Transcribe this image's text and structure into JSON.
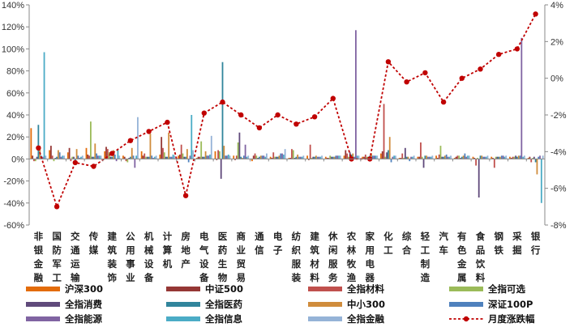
{
  "chart_data": {
    "type": "bar",
    "categories": [
      "非银金融",
      "国防军工",
      "交通运输",
      "传媒",
      "建筑装饰",
      "公用事业",
      "机械设备",
      "计算机",
      "房地产",
      "电气设备",
      "医药生物",
      "商业贸易",
      "通信",
      "电子",
      "纺织服装",
      "建筑材料",
      "休闲服务",
      "农林牧渔",
      "家用电器",
      "化工",
      "综合",
      "轻工制造",
      "汽车",
      "有色金属",
      "食品饮料",
      "钢铁",
      "采掘",
      "银行"
    ],
    "category_labels": [
      [
        "非",
        "银",
        "金",
        "融"
      ],
      [
        "国",
        "防",
        "军",
        "工"
      ],
      [
        "交",
        "通",
        "运",
        "输"
      ],
      [
        "传",
        "媒"
      ],
      [
        "建",
        "筑",
        "装",
        "饰"
      ],
      [
        "公",
        "用",
        "事",
        "业"
      ],
      [
        "机",
        "械",
        "设",
        "备"
      ],
      [
        "计",
        "算",
        "机"
      ],
      [
        "房",
        "地",
        "产"
      ],
      [
        "电",
        "气",
        "设",
        "备"
      ],
      [
        "医",
        "药",
        "生",
        "物"
      ],
      [
        "商",
        "业",
        "贸",
        "易"
      ],
      [
        "通",
        "信"
      ],
      [
        "电",
        "子"
      ],
      [
        "纺",
        "织",
        "服",
        "装"
      ],
      [
        "建",
        "筑",
        "材",
        "料"
      ],
      [
        "休",
        "闲",
        "服",
        "务"
      ],
      [
        "农",
        "林",
        "牧",
        "渔"
      ],
      [
        "家",
        "用",
        "电",
        "器"
      ],
      [
        "化",
        "工"
      ],
      [
        "综",
        "合"
      ],
      [
        "轻",
        "工",
        "制",
        "造"
      ],
      [
        "汽",
        "车"
      ],
      [
        "有",
        "色",
        "金",
        "属"
      ],
      [
        "食",
        "品",
        "饮",
        "料"
      ],
      [
        "钢",
        "铁"
      ],
      [
        "采",
        "掘"
      ],
      [
        "银",
        "行"
      ]
    ],
    "y_left": {
      "ylim": [
        -60,
        140
      ],
      "ticks": [
        -60,
        -40,
        -20,
        0,
        20,
        40,
        60,
        80,
        100,
        120,
        140
      ],
      "suffix": "%"
    },
    "y_right": {
      "ylim": [
        -8,
        4
      ],
      "ticks": [
        -8,
        -6,
        -4,
        -2,
        0,
        2,
        4
      ],
      "suffix": "%"
    },
    "series": [
      {
        "name": "沪深300",
        "color": "#E36C0A",
        "axis": "left",
        "values": [
          28,
          8,
          6,
          10,
          7,
          3,
          7,
          4,
          3,
          1,
          7,
          3,
          -2,
          2,
          1,
          3,
          2,
          3,
          2,
          5,
          1,
          2,
          3,
          1,
          2,
          2,
          2,
          1
        ]
      },
      {
        "name": "中证500",
        "color": "#953735",
        "axis": "left",
        "values": [
          3,
          12,
          10,
          4,
          11,
          2,
          3,
          20,
          4,
          2,
          -1,
          -1,
          3,
          1,
          1,
          -1,
          1,
          8,
          2,
          7,
          1,
          2,
          1,
          2,
          1,
          1,
          1,
          2
        ]
      },
      {
        "name": "全指材料",
        "color": "#C0504D",
        "axis": "left",
        "values": [
          -2,
          3,
          -2,
          3,
          9,
          -2,
          5,
          10,
          13,
          2,
          8,
          3,
          5,
          6,
          9,
          13,
          1,
          5,
          4,
          50,
          5,
          15,
          4,
          3,
          -6,
          -8,
          2,
          -3
        ]
      },
      {
        "name": "全指可选",
        "color": "#9BBB59",
        "axis": "left",
        "values": [
          -2,
          -2,
          2,
          34,
          6,
          -3,
          2,
          6,
          5,
          16,
          7,
          15,
          3,
          2,
          8,
          1,
          3,
          2,
          2,
          2,
          1,
          2,
          12,
          3,
          1,
          2,
          2,
          1
        ]
      },
      {
        "name": "全指消费",
        "color": "#604A7B",
        "axis": "left",
        "values": [
          2,
          1,
          2,
          2,
          2,
          1,
          2,
          2,
          2,
          2,
          -18,
          24,
          1,
          2,
          1,
          2,
          2,
          6,
          2,
          6,
          10,
          -8,
          2,
          1,
          -35,
          2,
          3,
          2
        ]
      },
      {
        "name": "全指医药",
        "color": "#31859C",
        "axis": "left",
        "values": [
          31,
          2,
          -2,
          2,
          2,
          2,
          2,
          2,
          2,
          2,
          88,
          2,
          2,
          2,
          2,
          2,
          2,
          4,
          3,
          8,
          2,
          3,
          2,
          2,
          3,
          2,
          2,
          -3
        ]
      },
      {
        "name": "中小300",
        "color": "#D08C3C",
        "axis": "left",
        "values": [
          12,
          8,
          9,
          14,
          8,
          10,
          23,
          24,
          9,
          7,
          12,
          1,
          3,
          3,
          4,
          3,
          2,
          5,
          5,
          20,
          2,
          3,
          3,
          3,
          3,
          2,
          3,
          -14
        ]
      },
      {
        "name": "深证100P",
        "color": "#4F81BD",
        "axis": "left",
        "values": [
          3,
          6,
          3,
          5,
          4,
          3,
          3,
          2,
          -3,
          3,
          3,
          3,
          3,
          5,
          2,
          2,
          3,
          2,
          3,
          -3,
          -2,
          2,
          4,
          5,
          2,
          3,
          3,
          2
        ]
      },
      {
        "name": "全指能源",
        "color": "#8064A2",
        "axis": "left",
        "values": [
          2,
          2,
          1,
          3,
          -2,
          -8,
          1,
          2,
          3,
          3,
          3,
          13,
          3,
          5,
          2,
          2,
          3,
          117,
          3,
          2,
          2,
          2,
          2,
          2,
          2,
          3,
          110,
          3
        ]
      },
      {
        "name": "全指信息",
        "color": "#4BACC6",
        "axis": "left",
        "values": [
          97,
          3,
          2,
          3,
          8,
          3,
          2,
          4,
          40,
          4,
          4,
          2,
          2,
          4,
          2,
          2,
          3,
          3,
          3,
          3,
          2,
          2,
          2,
          3,
          2,
          2,
          2,
          -40
        ]
      },
      {
        "name": "全指金融",
        "color": "#95B3D7",
        "axis": "left",
        "values": [
          3,
          3,
          3,
          3,
          3,
          38,
          3,
          3,
          8,
          21,
          3,
          3,
          5,
          9,
          3,
          3,
          3,
          3,
          3,
          3,
          3,
          3,
          3,
          3,
          3,
          3,
          3,
          3
        ]
      },
      {
        "name": "月度涨跌幅",
        "color": "#C00000",
        "axis": "right",
        "render": "line",
        "values": [
          -3.8,
          -7.0,
          -4.6,
          -4.8,
          -4.1,
          -3.4,
          -2.9,
          -2.4,
          -6.4,
          -1.9,
          -1.3,
          -2.0,
          -2.7,
          -2.0,
          -2.5,
          -2.1,
          -1.1,
          -4.4,
          -4.4,
          0.9,
          -0.2,
          0.3,
          -1.3,
          0.0,
          0.5,
          1.3,
          1.6,
          3.5
        ]
      }
    ]
  },
  "legend": [
    {
      "label": "沪深300",
      "color": "#E36C0A",
      "kind": "bar"
    },
    {
      "label": "中证500",
      "color": "#953735",
      "kind": "bar"
    },
    {
      "label": "全指材料",
      "color": "#C0504D",
      "kind": "bar"
    },
    {
      "label": "全指可选",
      "color": "#9BBB59",
      "kind": "bar"
    },
    {
      "label": "全指消费",
      "color": "#604A7B",
      "kind": "bar"
    },
    {
      "label": "全指医药",
      "color": "#31859C",
      "kind": "bar"
    },
    {
      "label": "中小300",
      "color": "#D08C3C",
      "kind": "bar"
    },
    {
      "label": "深证100P",
      "color": "#4F81BD",
      "kind": "bar"
    },
    {
      "label": "全指能源",
      "color": "#8064A2",
      "kind": "bar"
    },
    {
      "label": "全指信息",
      "color": "#4BACC6",
      "kind": "bar"
    },
    {
      "label": "全指金融",
      "color": "#95B3D7",
      "kind": "bar"
    },
    {
      "label": "月度涨跌幅",
      "color": "#C00000",
      "kind": "line"
    }
  ]
}
